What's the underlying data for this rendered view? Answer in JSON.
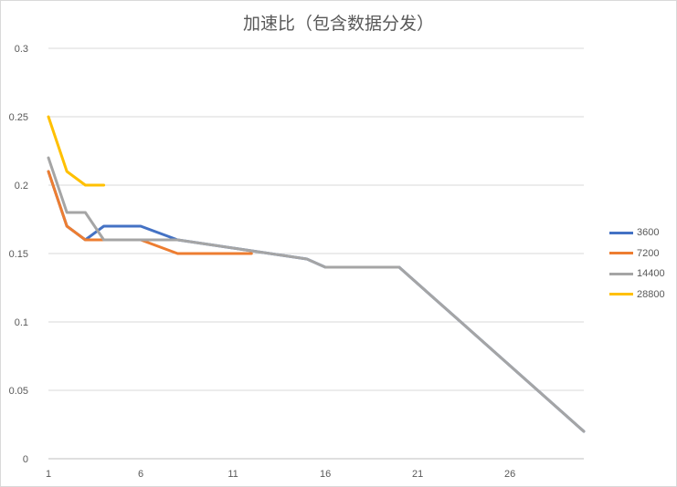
{
  "chart_data": {
    "type": "line",
    "title": "加速比（包含数据分发）",
    "xlabel": "",
    "ylabel": "",
    "xlim": [
      1,
      30
    ],
    "ylim": [
      0,
      0.3
    ],
    "yticks": [
      "0",
      "0.05",
      "0.1",
      "0.15",
      "0.2",
      "0.25",
      "0.3"
    ],
    "ytick_values": [
      0,
      0.05,
      0.1,
      0.15,
      0.2,
      0.25,
      0.3
    ],
    "xticks": [
      "1",
      "6",
      "11",
      "16",
      "21",
      "26"
    ],
    "xtick_values": [
      1,
      6,
      11,
      16,
      21,
      26
    ],
    "grid": "horizontal",
    "legend_position": "right",
    "series": [
      {
        "name": "3600",
        "color": "#4472c4",
        "x": [
          1,
          2,
          3,
          4,
          5,
          6,
          7,
          8,
          9,
          10,
          11,
          12,
          13,
          14,
          15,
          16,
          17,
          18,
          19,
          20,
          21,
          22,
          23,
          24,
          25,
          26,
          27,
          28,
          29,
          30
        ],
        "values": [
          0.21,
          0.17,
          0.16,
          0.17,
          0.17,
          0.17,
          0.165,
          0.16,
          0.158,
          0.156,
          0.154,
          0.152,
          0.15,
          0.148,
          0.146,
          0.14,
          0.14,
          0.14,
          0.14,
          0.14,
          0.128,
          0.116,
          0.104,
          0.092,
          0.08,
          0.068,
          0.056,
          0.044,
          0.032,
          0.02
        ]
      },
      {
        "name": "7200",
        "color": "#ed7d31",
        "x": [
          1,
          2,
          3,
          4,
          5,
          6,
          7,
          8,
          9,
          10,
          11,
          12
        ],
        "values": [
          0.21,
          0.17,
          0.16,
          0.16,
          0.16,
          0.16,
          0.155,
          0.15,
          0.15,
          0.15,
          0.15,
          0.15
        ]
      },
      {
        "name": "14400",
        "color": "#a5a5a5",
        "x": [
          1,
          2,
          3,
          4,
          5,
          6,
          7,
          8,
          9,
          10,
          11,
          12,
          13,
          14,
          15,
          16,
          17,
          18,
          19,
          20,
          21,
          22,
          23,
          24,
          25,
          26,
          27,
          28,
          29,
          30
        ],
        "values": [
          0.22,
          0.18,
          0.18,
          0.16,
          0.16,
          0.16,
          0.16,
          0.16,
          0.158,
          0.156,
          0.154,
          0.152,
          0.15,
          0.148,
          0.146,
          0.14,
          0.14,
          0.14,
          0.14,
          0.14,
          0.128,
          0.116,
          0.104,
          0.092,
          0.08,
          0.068,
          0.056,
          0.044,
          0.032,
          0.02
        ]
      },
      {
        "name": "28800",
        "color": "#ffc000",
        "x": [
          1,
          2,
          3,
          4
        ],
        "values": [
          0.25,
          0.21,
          0.2,
          0.2
        ]
      }
    ]
  }
}
